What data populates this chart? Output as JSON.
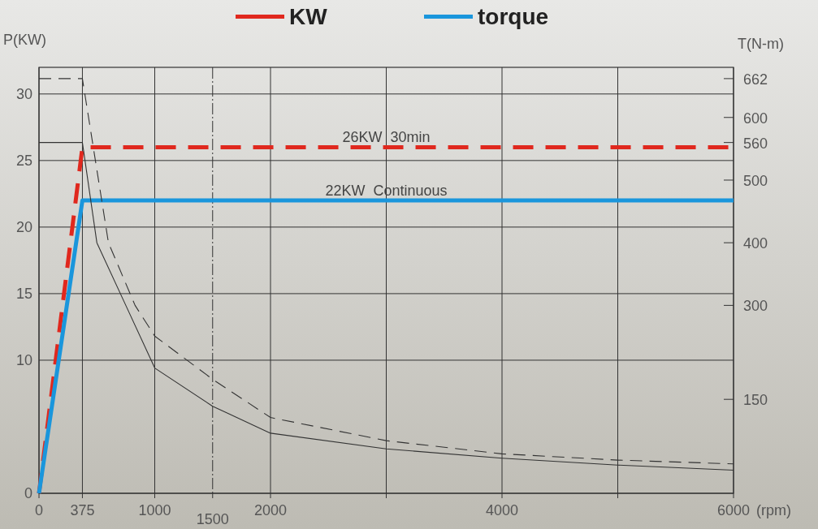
{
  "chart_data": {
    "type": "line",
    "xlabel": "(rpm)",
    "ylabel": "P(KW)",
    "y2label": "T(N-m)",
    "xlim": [
      0,
      6000
    ],
    "xticks": [
      0,
      375,
      1000,
      {
        "value": 1500,
        "label": null
      },
      2000,
      {
        "value": 3000,
        "label": null
      },
      4000,
      {
        "value": 5000,
        "label": null
      },
      6000
    ],
    "ylim": [
      0,
      32
    ],
    "yticks": [
      0,
      10,
      15,
      20,
      25,
      30
    ],
    "y2lim": [
      0,
      680
    ],
    "y2ticks": [
      150,
      300,
      400,
      500,
      560,
      600,
      662
    ],
    "grid": true,
    "legend": "top",
    "ref_lines": [
      {
        "axis": "x",
        "value": 1500,
        "label": "1500",
        "line_style": "dashed",
        "color": "#333333"
      }
    ],
    "annotations": [
      {
        "text": "26KW  30min",
        "x": 3000,
        "y": 26
      },
      {
        "text": "22KW  Continuous",
        "x": 3000,
        "y": 22
      }
    ],
    "series": [
      {
        "name": "KW",
        "color": "#e0281e",
        "line_style": "dashed",
        "x": [
          0,
          375,
          6000
        ],
        "values": [
          0,
          26,
          26
        ]
      },
      {
        "name": "torque",
        "color": "#1a96dc",
        "line_style": "solid",
        "x": [
          0,
          375,
          6000
        ],
        "values": [
          0,
          22,
          22
        ]
      },
      {
        "color": "#333333",
        "line_style": "dashed",
        "axis": "y2",
        "x": [
          0,
          375,
          600,
          830,
          1000,
          1500,
          2000,
          3000,
          4000,
          5000,
          6000
        ],
        "values": [
          662,
          662,
          400,
          300,
          251,
          182,
          121,
          84,
          63,
          53,
          47
        ]
      },
      {
        "color": "#333333",
        "line_style": "solid",
        "axis": "y2",
        "x": [
          0,
          375,
          500,
          750,
          1000,
          1500,
          2000,
          3000,
          4000,
          5000,
          6000
        ],
        "values": [
          560,
          560,
          400,
          300,
          200,
          139,
          96,
          71,
          56,
          45,
          37
        ]
      }
    ]
  }
}
